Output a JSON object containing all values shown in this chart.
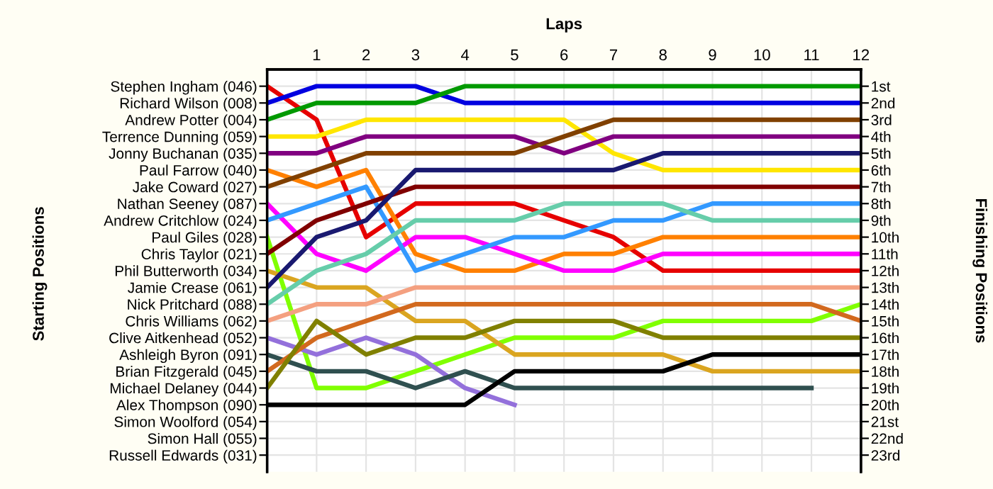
{
  "chart_data": {
    "type": "line",
    "xlabel": "Laps",
    "ylabel": "Finishing Positions",
    "annotations": [
      "Starting Positions"
    ],
    "x": [
      0,
      1,
      2,
      3,
      4,
      5,
      6,
      7,
      8,
      9,
      10,
      11,
      12
    ],
    "xlim": [
      0,
      12
    ],
    "xticks": [
      {
        "value": 0,
        "label": null
      },
      1,
      2,
      3,
      4,
      5,
      6,
      7,
      8,
      9,
      10,
      11,
      12
    ],
    "ylim": [
      24,
      0
    ],
    "yticks": [
      {
        "value": 1,
        "label": "1st"
      },
      {
        "value": 2,
        "label": "2nd"
      },
      {
        "value": 3,
        "label": "3rd"
      },
      {
        "value": 4,
        "label": "4th"
      },
      {
        "value": 5,
        "label": "5th"
      },
      {
        "value": 6,
        "label": "6th"
      },
      {
        "value": 7,
        "label": "7th"
      },
      {
        "value": 8,
        "label": "8th"
      },
      {
        "value": 9,
        "label": "9th"
      },
      {
        "value": 10,
        "label": "10th"
      },
      {
        "value": 11,
        "label": "11th"
      },
      {
        "value": 12,
        "label": "12th"
      },
      {
        "value": 13,
        "label": "13th"
      },
      {
        "value": 14,
        "label": "14th"
      },
      {
        "value": 15,
        "label": "15th"
      },
      {
        "value": 16,
        "label": "16th"
      },
      {
        "value": 17,
        "label": "17th"
      },
      {
        "value": 18,
        "label": "18th"
      },
      {
        "value": 19,
        "label": "19th"
      },
      {
        "value": 20,
        "label": "20th"
      },
      {
        "value": 21,
        "label": "21st"
      },
      {
        "value": 22,
        "label": "22nd"
      },
      {
        "value": 23,
        "label": "23rd"
      }
    ],
    "y2_categories": [
      "Stephen Ingham (046)",
      "Richard Wilson (008)",
      "Andrew Potter (004)",
      "Terrence Dunning (059)",
      "Jonny Buchanan (035)",
      "Paul Farrow (040)",
      "Jake Coward (027)",
      "Nathan Seeney (087)",
      "Andrew Critchlow (024)",
      "Paul Giles (028)",
      "Chris Taylor (021)",
      "Phil Butterworth (034)",
      "Jamie Crease (061)",
      "Nick Pritchard (088)",
      "Chris Williams (062)",
      "Clive Aitkenhead (052)",
      "Ashleigh Byron (091)",
      "Brian Fitzgerald (045)",
      "Michael Delaney (044)",
      "Alex Thompson (090)",
      "Simon Woolford (054)",
      "Simon Hall (055)",
      "Russell Edwards (031)"
    ],
    "grid": true,
    "marker": "none",
    "line_style": "solid",
    "legend": false,
    "series": [
      {
        "color": "#e60000",
        "values": [
          1,
          3,
          10,
          8,
          8,
          8,
          9,
          10,
          12,
          12,
          12,
          12,
          12
        ]
      },
      {
        "color": "#0000e0",
        "values": [
          2,
          1,
          1,
          1,
          2,
          2,
          2,
          2,
          2,
          2,
          2,
          2,
          2
        ]
      },
      {
        "color": "#009900",
        "values": [
          3,
          2,
          2,
          2,
          1,
          1,
          1,
          1,
          1,
          1,
          1,
          1,
          1
        ]
      },
      {
        "color": "#ffe600",
        "values": [
          4,
          4,
          3,
          3,
          3,
          3,
          3,
          5,
          6,
          6,
          6,
          6,
          6
        ]
      },
      {
        "color": "#800080",
        "values": [
          5,
          5,
          4,
          4,
          4,
          4,
          5,
          4,
          4,
          4,
          4,
          4,
          4
        ]
      },
      {
        "color": "#ff8000",
        "values": [
          6,
          7,
          6,
          11,
          12,
          12,
          11,
          11,
          10,
          10,
          10,
          10,
          10
        ]
      },
      {
        "color": "#804000",
        "values": [
          7,
          6,
          5,
          5,
          5,
          5,
          4,
          3,
          3,
          3,
          3,
          3,
          3
        ]
      },
      {
        "color": "#ff00ff",
        "values": [
          8,
          11,
          12,
          10,
          10,
          11,
          12,
          12,
          11,
          11,
          11,
          11,
          11
        ]
      },
      {
        "color": "#3399ff",
        "values": [
          9,
          8,
          7,
          12,
          11,
          10,
          10,
          9,
          9,
          8,
          8,
          8,
          8
        ]
      },
      {
        "color": "#80ff00",
        "values": [
          10,
          19,
          19,
          18,
          17,
          16,
          16,
          16,
          15,
          15,
          15,
          15,
          14
        ]
      },
      {
        "color": "#800000",
        "values": [
          11,
          9,
          8,
          7,
          7,
          7,
          7,
          7,
          7,
          7,
          7,
          7,
          7
        ]
      },
      {
        "color": "#daa520",
        "values": [
          12,
          13,
          13,
          15,
          15,
          17,
          17,
          17,
          17,
          18,
          18,
          18,
          18
        ]
      },
      {
        "color": "#191970",
        "values": [
          13,
          10,
          9,
          6,
          6,
          6,
          6,
          6,
          5,
          5,
          5,
          5,
          5
        ]
      },
      {
        "color": "#66cdaa",
        "values": [
          14,
          12,
          11,
          9,
          9,
          9,
          8,
          8,
          8,
          9,
          9,
          9,
          9
        ]
      },
      {
        "color": "#f4a080",
        "values": [
          15,
          14,
          14,
          13,
          13,
          13,
          13,
          13,
          13,
          13,
          13,
          13,
          13
        ]
      },
      {
        "color": "#9370db",
        "values": [
          16,
          17,
          16,
          17,
          19,
          20,
          null,
          null,
          null,
          null,
          null,
          null,
          null
        ]
      },
      {
        "color": "#2f4f4f",
        "values": [
          17,
          18,
          18,
          19,
          18,
          19,
          19,
          19,
          19,
          19,
          19,
          19,
          null
        ]
      },
      {
        "color": "#d2691e",
        "values": [
          18,
          16,
          15,
          14,
          14,
          14,
          14,
          14,
          14,
          14,
          14,
          14,
          15
        ]
      },
      {
        "color": "#808000",
        "values": [
          19,
          15,
          17,
          16,
          16,
          15,
          15,
          15,
          16,
          16,
          16,
          16,
          16
        ]
      },
      {
        "color": "#000000",
        "values": [
          20,
          20,
          20,
          20,
          20,
          18,
          18,
          18,
          18,
          17,
          17,
          17,
          17
        ]
      }
    ]
  }
}
